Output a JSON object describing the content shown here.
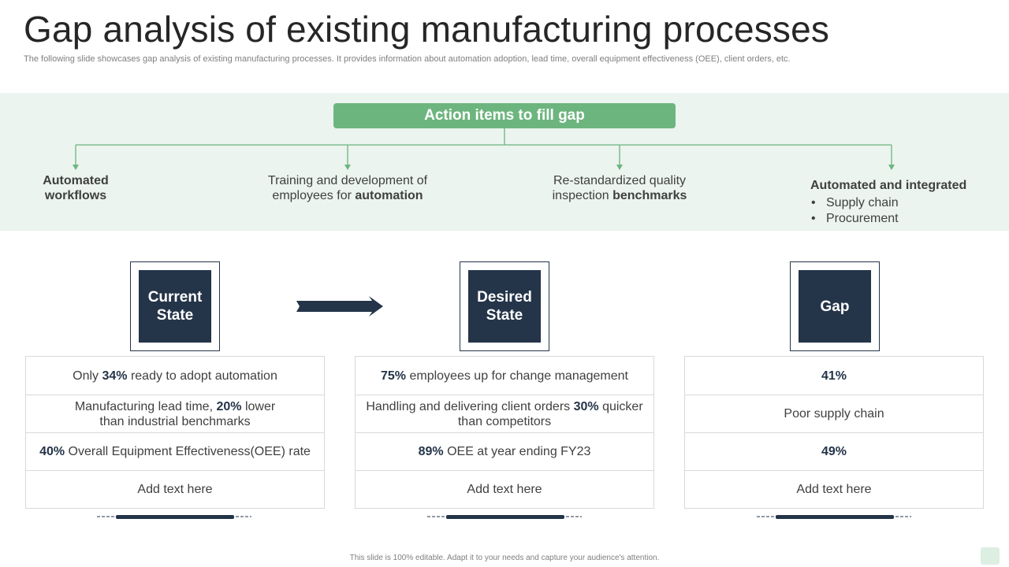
{
  "title": "Gap analysis of existing manufacturing processes",
  "subtitle": "The following slide showcases gap analysis of existing manufacturing processes. It provides information about automation adoption, lead time, overall equipment effectiveness (OEE), client orders, etc.",
  "action_items": {
    "header": "Action items to fill gap",
    "item1": {
      "line1": "Automated",
      "line2": "workflows"
    },
    "item2": {
      "prefix": "Training and development of employees for ",
      "bold": "automation"
    },
    "item3": {
      "prefix": "Re-standardized quality inspection ",
      "bold": "benchmarks"
    },
    "item4": {
      "heading": "Automated and integrated",
      "bullets": [
        "Supply chain",
        "Procurement"
      ]
    }
  },
  "states": {
    "current": {
      "label_line1": "Current",
      "label_line2": "State"
    },
    "desired": {
      "label_line1": "Desired",
      "label_line2": "State"
    },
    "gap": {
      "label": "Gap"
    }
  },
  "current_table": {
    "row1": {
      "pre": "Only ",
      "bold": "34%",
      "post": " ready to adopt automation"
    },
    "row2": {
      "pre": "Manufacturing  lead time, ",
      "bold": "20%",
      "post1": " lower",
      "post2": "than industrial benchmarks"
    },
    "row3": {
      "bold": "40%",
      "post": " Overall Equipment Effectiveness(OEE) rate"
    },
    "row4": "Add text here"
  },
  "desired_table": {
    "row1": {
      "bold": "75%",
      "post": " employees up for change management"
    },
    "row2": {
      "pre": "Handling and delivering client orders ",
      "bold": "30%",
      "post1": " quicker",
      "post2": "than competitors"
    },
    "row3": {
      "bold": "89%",
      "post": " OEE at year ending FY23"
    },
    "row4": "Add text here"
  },
  "gap_table": {
    "row1": "41%",
    "row2": "Poor supply chain",
    "row3": "49%",
    "row4": "Add text here"
  },
  "footer": "This slide is 100% editable.  Adapt it to your needs and capture your audience's attention.",
  "colors": {
    "green": "#6db57e",
    "band": "#ebf4ee",
    "navy": "#243449",
    "border": "#d9d9d9"
  }
}
